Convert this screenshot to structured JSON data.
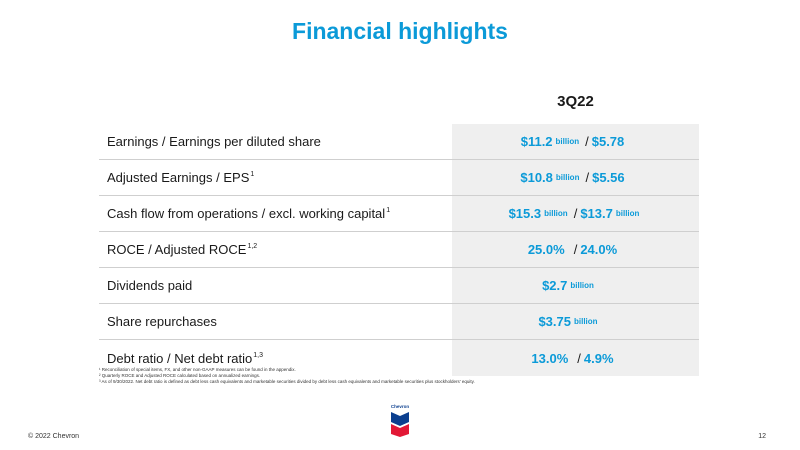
{
  "title": "Financial highlights",
  "column_header": "3Q22",
  "rows": [
    {
      "label": "Earnings / Earnings per diluted share",
      "sup": "",
      "v1": "$11.2",
      "u1": "billion",
      "sep": "/",
      "v2": "$5.78",
      "u2": ""
    },
    {
      "label": "Adjusted Earnings / EPS",
      "sup": "1",
      "v1": "$10.8",
      "u1": "billion",
      "sep": "/",
      "v2": "$5.56",
      "u2": ""
    },
    {
      "label": "Cash flow from operations / excl. working capital",
      "sup": "1",
      "v1": "$15.3",
      "u1": "billion",
      "sep": "/",
      "v2": "$13.7",
      "u2": "billion"
    },
    {
      "label": "ROCE / Adjusted ROCE",
      "sup": "1,2",
      "v1": "25.0%",
      "u1": "",
      "sep": "/",
      "v2": "24.0%",
      "u2": ""
    },
    {
      "label": "Dividends paid",
      "sup": "",
      "v1": "$2.7",
      "u1": "billion",
      "sep": "",
      "v2": "",
      "u2": ""
    },
    {
      "label": "Share repurchases",
      "sup": "",
      "v1": "$3.75",
      "u1": "billion",
      "sep": "",
      "v2": "",
      "u2": ""
    },
    {
      "label": "Debt ratio / Net debt ratio",
      "sup": "1,3",
      "v1": "13.0%",
      "u1": "",
      "sep": "/",
      "v2": "4.9%",
      "u2": ""
    }
  ],
  "footnotes": [
    "¹ Reconciliation of special items, FX, and other non-GAAP measures can be found in the appendix.",
    "² Quarterly ROCE and Adjusted ROCE calculated based on annualized earnings.",
    "³ As of 9/30/2022. Net debt ratio is defined as debt less cash equivalents and marketable securities divided by debt less cash equivalents and marketable securities plus stockholders' equity."
  ],
  "footer": {
    "copyright": "© 2022 Chevron",
    "page_number": "12",
    "logo_text": "Chevron"
  },
  "colors": {
    "accent": "#0b9ad8",
    "value_background": "#efefef",
    "logo_blue": "#0b3f8f",
    "logo_red": "#e21836"
  }
}
